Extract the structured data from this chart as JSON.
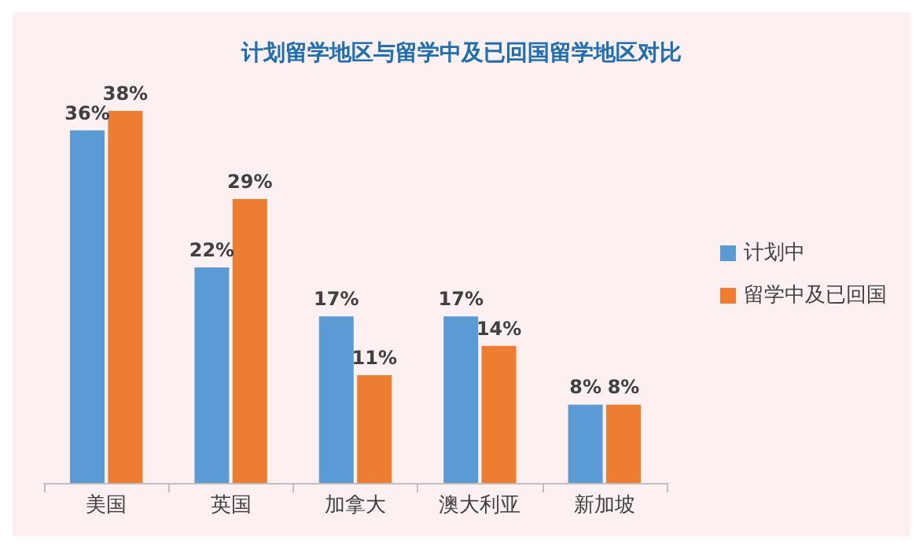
{
  "chart_data": {
    "type": "bar",
    "title": "计划留学地区与留学中及已回国留学地区对比",
    "categories": [
      "美国",
      "英国",
      "加拿大",
      "澳大利亚",
      "新加坡"
    ],
    "series": [
      {
        "name": "计划中",
        "color": "#5b9bd5",
        "values": [
          36,
          22,
          17,
          17,
          8
        ],
        "value_labels": [
          "36%",
          "22%",
          "17%",
          "17%",
          "8%"
        ]
      },
      {
        "name": "留学中及已回国",
        "color": "#ed7d31",
        "values": [
          38,
          29,
          11,
          14,
          8
        ],
        "value_labels": [
          "38%",
          "29%",
          "11%",
          "14%",
          "8%"
        ]
      }
    ],
    "legend": "right",
    "grid": false
  }
}
